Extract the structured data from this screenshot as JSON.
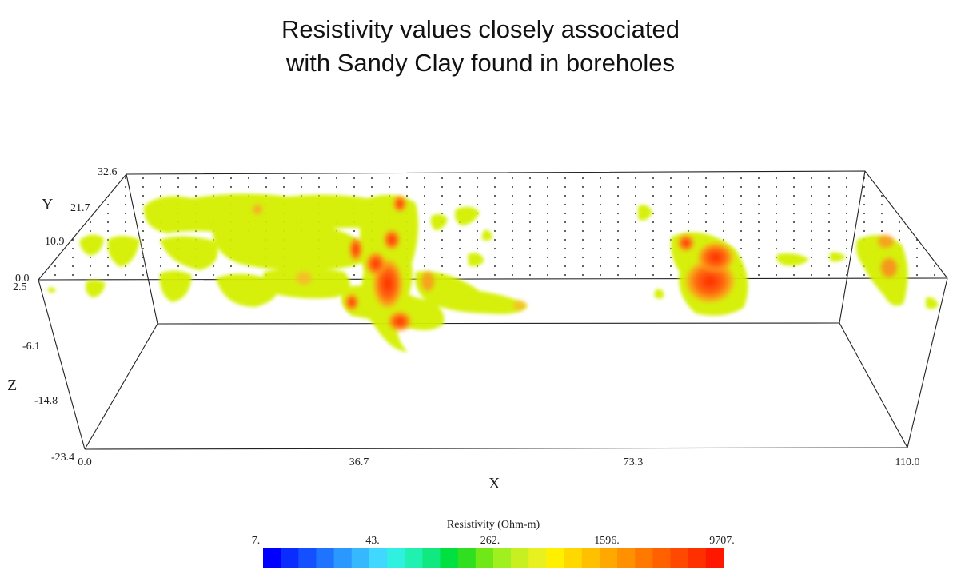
{
  "title": {
    "line1": "Resistivity values closely associated",
    "line2": "with Sandy Clay found in boreholes"
  },
  "axes": {
    "x": {
      "label": "X",
      "ticks": [
        "0.0",
        "36.7",
        "73.3",
        "110.0"
      ]
    },
    "y": {
      "label": "Y",
      "ticks": [
        "32.6",
        "21.7",
        "10.9",
        "0.0"
      ]
    },
    "z": {
      "label": "Z",
      "ticks": [
        "2.5",
        "-6.1",
        "-14.8",
        "-23.4"
      ]
    }
  },
  "colorbar": {
    "label": "Resistivity (Ohm-m)",
    "ticks": [
      "7.",
      "43.",
      "262.",
      "1596.",
      "9707."
    ],
    "colors": [
      "#0000ff",
      "#0a2cff",
      "#1450ff",
      "#1e74ff",
      "#2a98ff",
      "#36b8ff",
      "#40d8ff",
      "#30f0e0",
      "#20f0b0",
      "#10e880",
      "#00e040",
      "#30e020",
      "#70e818",
      "#a0f020",
      "#c8f020",
      "#e8f020",
      "#fff000",
      "#ffd800",
      "#ffc000",
      "#ffa800",
      "#ff9000",
      "#ff7800",
      "#ff6000",
      "#ff4800",
      "#ff3000",
      "#ff1800"
    ]
  },
  "colors": {
    "low_blob": "#d4f000",
    "high_blob": "#ff2a00"
  }
}
